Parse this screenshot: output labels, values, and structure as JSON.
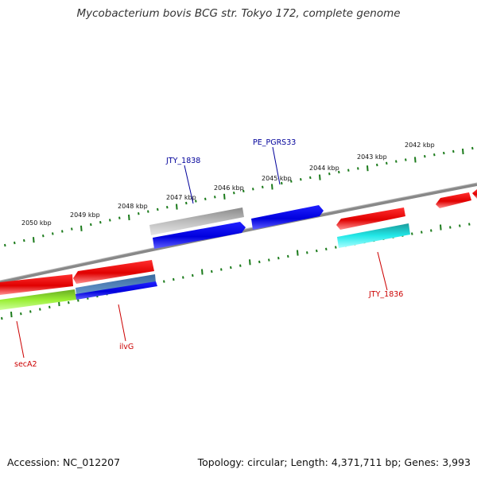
{
  "title": "Mycobacterium bovis BCG str. Tokyo 172, complete genome",
  "footer": {
    "accession": "Accession: NC_012207",
    "summary": "Topology: circular; Length: 4,371,711 bp; Genes: 3,993"
  },
  "ticks": [
    "2050 kbp",
    "2049 kbp",
    "2048 kbp",
    "2047 kbp",
    "2046 kbp",
    "2045 kbp",
    "2044 kbp",
    "2043 kbp",
    "2042 kbp"
  ],
  "gene_labels": {
    "jty1838": "JTY_1838",
    "pe_pgrs33": "PE_PGRS33",
    "jty1836": "JTY_1836",
    "seca2": "secA2",
    "ilvg": "ilvG"
  },
  "colors": {
    "forward_label": "#00009a",
    "reverse_label": "#cc0000",
    "backbone": "#888888",
    "tick": "#1a7a1a",
    "red_gene": "#ee1111",
    "blue_gene": "#0000ee",
    "gray_gene": "#b0b0b0",
    "cyan_gene": "#22eeee",
    "green_gene": "#99ee33"
  }
}
